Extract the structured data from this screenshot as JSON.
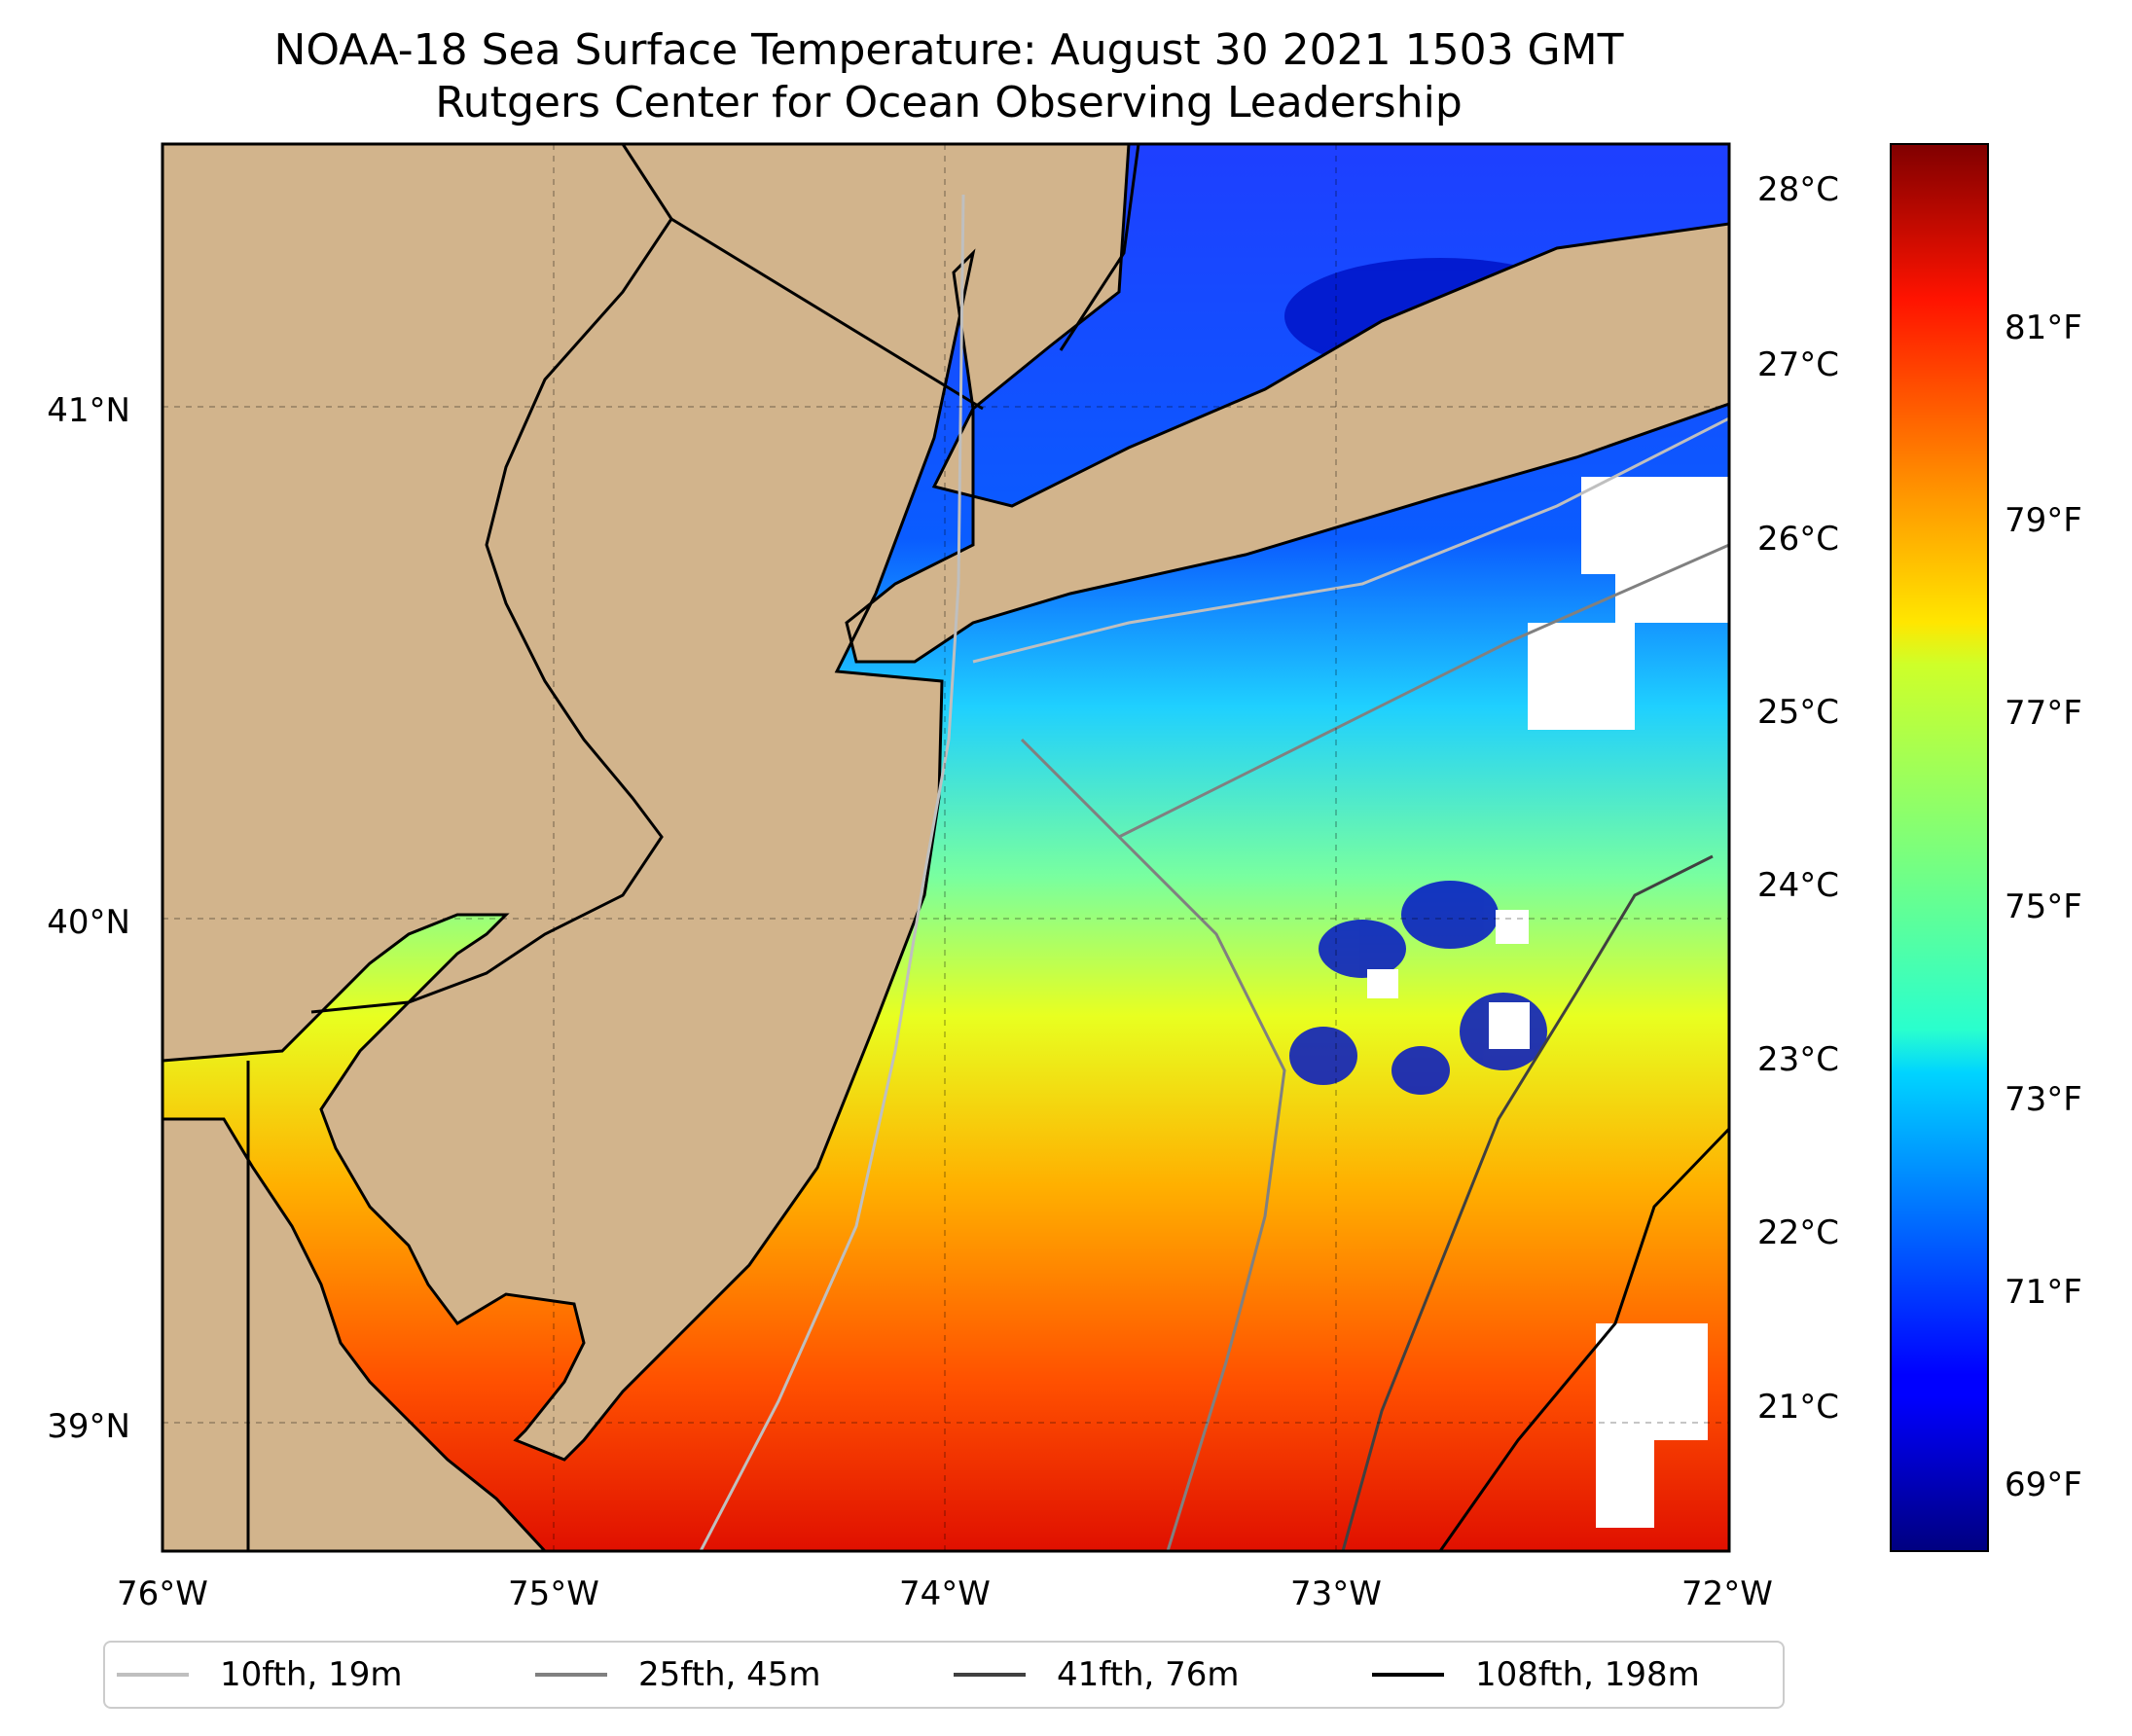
{
  "title": "NOAA-18 Sea Surface Temperature: August 30 2021 1503 GMT",
  "subtitle": "Rutgers Center for Ocean Observing Leadership",
  "map": {
    "land_color": "#d2b48c",
    "lat_ticks": [
      {
        "value": 41,
        "label": "41°N"
      },
      {
        "value": 40,
        "label": "40°N"
      },
      {
        "value": 39,
        "label": "39°N"
      }
    ],
    "lon_ticks": [
      {
        "value": -76,
        "label": "76°W"
      },
      {
        "value": -75,
        "label": "75°W"
      },
      {
        "value": -74,
        "label": "74°W"
      },
      {
        "value": -73,
        "label": "73°W"
      },
      {
        "value": -72,
        "label": "72°W"
      }
    ],
    "extent": {
      "lon": [
        -76,
        -72
      ],
      "lat": [
        38.75,
        41.5
      ]
    },
    "grid": true
  },
  "colorbar": {
    "colormap": "jet",
    "celsius_ticks": [
      "28°C",
      "27°C",
      "26°C",
      "25°C",
      "24°C",
      "23°C",
      "22°C",
      "21°C"
    ],
    "fahrenheit_ticks": [
      "81°F",
      "79°F",
      "77°F",
      "75°F",
      "73°F",
      "71°F",
      "69°F"
    ],
    "range_c": [
      20.2,
      28.3
    ]
  },
  "legend": [
    {
      "label": "10fth, 19m",
      "color": "#bfbfbf"
    },
    {
      "label": "25fth, 45m",
      "color": "#808080"
    },
    {
      "label": "41fth, 76m",
      "color": "#404040"
    },
    {
      "label": "108fth, 198m",
      "color": "#000000"
    }
  ]
}
